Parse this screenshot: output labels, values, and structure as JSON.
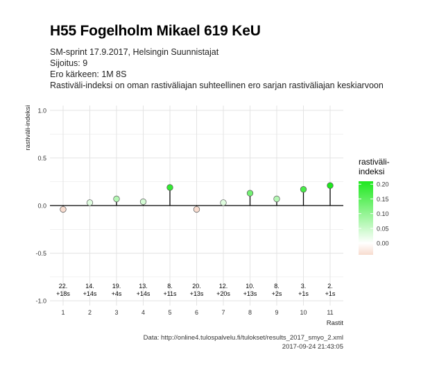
{
  "header": {
    "title": "H55 Fogelholm Mikael 619 KeU",
    "subtitle_lines": [
      "SM-sprint 17.9.2017, Helsingin Suunnistajat",
      "Sijoitus: 9",
      "Ero kärkeen: 1M 8S",
      "Rastiväli-indeksi on oman rastiväliajan suhteellinen ero sarjan rastiväliajan keskiarvoon"
    ]
  },
  "caption": {
    "source": "Data: http://online4.tulospalvelu.fi/tulokset/results_2017_smyo_2.xml",
    "timestamp": "2017-09-24 21:43:05"
  },
  "colors": {
    "legend_low": "#f8dccf",
    "legend_mid": "#ffffff",
    "legend_high": "#1ee81e",
    "stem": "#000000",
    "grid": "#e3e3e3"
  },
  "chart_data": {
    "type": "lollipop",
    "xlabel": "Rastit",
    "ylabel": "rastiväli-indeksi",
    "ylim": [
      -1.05,
      1.05
    ],
    "y_ticks": [
      "1.0",
      "0.5",
      "0.0",
      "-0.5",
      "-1.0"
    ],
    "y_tick_values": [
      1.0,
      0.5,
      0.0,
      -0.5,
      -1.0
    ],
    "x": [
      1,
      2,
      3,
      4,
      5,
      6,
      7,
      8,
      9,
      10,
      11
    ],
    "values": [
      -0.04,
      0.03,
      0.07,
      0.04,
      0.19,
      -0.04,
      0.03,
      0.13,
      0.07,
      0.17,
      0.21
    ],
    "rank_labels": [
      "22.",
      "14.",
      "19.",
      "13.",
      "8.",
      "20.",
      "12.",
      "10.",
      "8.",
      "3.",
      "2."
    ],
    "time_labels": [
      "+18s",
      "+14s",
      "+4s",
      "+14s",
      "+11s",
      "+13s",
      "+20s",
      "+13s",
      "+2s",
      "+1s",
      "+1s"
    ],
    "legend": {
      "title_lines": [
        "rastiväli-",
        "indeksi"
      ],
      "ticks": [
        "0.20",
        "0.15",
        "0.10",
        "0.05",
        "0.00"
      ],
      "tick_values": [
        0.2,
        0.15,
        0.1,
        0.05,
        0.0
      ],
      "range": [
        -0.04,
        0.21
      ],
      "position": "right"
    },
    "grid": true
  }
}
